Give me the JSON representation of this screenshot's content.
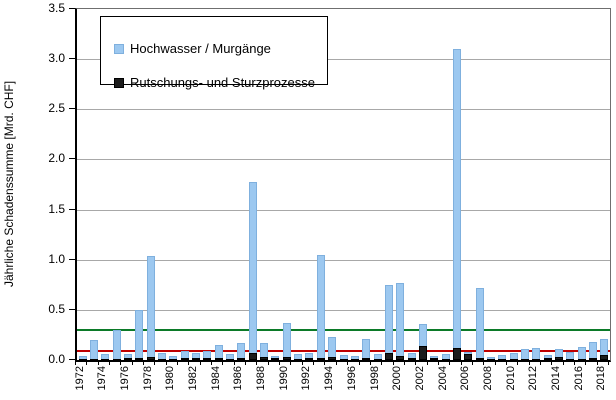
{
  "chart_data": {
    "type": "bar",
    "title": "",
    "ylabel": "Jährliche Schadenssumme [Mrd. CHF]",
    "xlabel": "",
    "ylim": [
      0,
      3.5
    ],
    "ytick_step": 0.5,
    "ytick_labels": [
      "0.0",
      "0.5",
      "1.0",
      "1.5",
      "2.0",
      "2.5",
      "3.0",
      "3.5"
    ],
    "grid": true,
    "legend_position": "top-left-inside",
    "categories": [
      1972,
      1973,
      1974,
      1975,
      1976,
      1977,
      1978,
      1979,
      1980,
      1981,
      1982,
      1983,
      1984,
      1985,
      1986,
      1987,
      1988,
      1989,
      1990,
      1991,
      1992,
      1993,
      1994,
      1995,
      1996,
      1997,
      1998,
      1999,
      2000,
      2001,
      2002,
      2003,
      2004,
      2005,
      2006,
      2007,
      2008,
      2009,
      2010,
      2011,
      2012,
      2013,
      2014,
      2015,
      2016,
      2017,
      2018
    ],
    "xtick_label_every": 2,
    "series": [
      {
        "name": "Hochwasser / Murgänge",
        "color": "#9cc8f0",
        "border_color": "#7fb0de",
        "values": [
          0.04,
          0.2,
          0.06,
          0.3,
          0.06,
          0.5,
          1.04,
          0.07,
          0.04,
          0.09,
          0.07,
          0.09,
          0.15,
          0.06,
          0.17,
          1.77,
          0.17,
          0.04,
          0.37,
          0.06,
          0.07,
          1.05,
          0.23,
          0.05,
          0.04,
          0.21,
          0.06,
          0.75,
          0.77,
          0.07,
          0.36,
          0.04,
          0.06,
          3.1,
          0.08,
          0.72,
          0.03,
          0.05,
          0.07,
          0.11,
          0.12,
          0.05,
          0.11,
          0.08,
          0.13,
          0.18,
          0.21
        ]
      },
      {
        "name": "Rutschungs- und Sturzprozesse",
        "color": "#1c1c1c",
        "border_color": "#000000",
        "values": [
          0.01,
          0.01,
          0.01,
          0.01,
          0.02,
          0.02,
          0.03,
          0.01,
          0.01,
          0.02,
          0.02,
          0.02,
          0.02,
          0.01,
          0.02,
          0.07,
          0.03,
          0.02,
          0.03,
          0.01,
          0.02,
          0.02,
          0.03,
          0.01,
          0.01,
          0.02,
          0.01,
          0.07,
          0.04,
          0.02,
          0.14,
          0.02,
          0.01,
          0.12,
          0.06,
          0.02,
          0.01,
          0.01,
          0.01,
          0.01,
          0.01,
          0.02,
          0.03,
          0.01,
          0.01,
          0.02,
          0.05
        ]
      }
    ],
    "reference_lines": [
      {
        "name": "green-reference-line",
        "color": "#0b7a28",
        "value": 0.3
      },
      {
        "name": "red-reference-line",
        "color": "#c00000",
        "value": 0.09
      }
    ],
    "gridline_color": "#a8a8a8",
    "axis_color": "#000000"
  }
}
